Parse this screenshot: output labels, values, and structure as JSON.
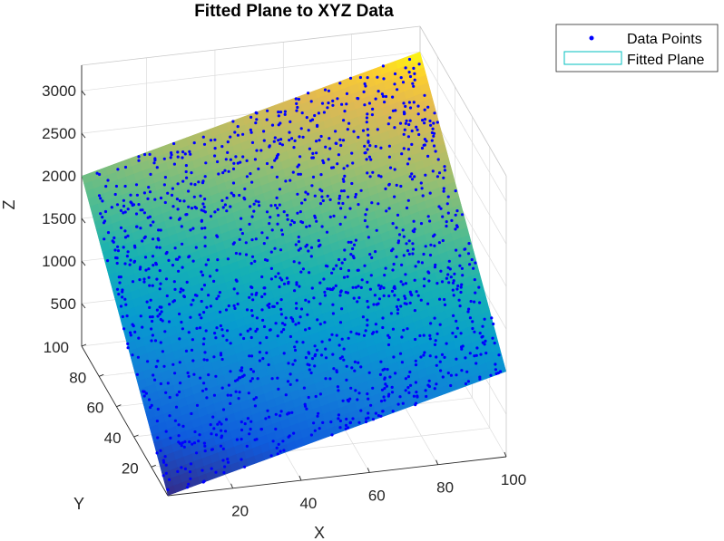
{
  "chart_data": {
    "type": "surface3d",
    "title": "Fitted Plane to XYZ Data",
    "xlabel": "X",
    "ylabel": "Y",
    "zlabel": "Z",
    "xlim": [
      1,
      100
    ],
    "ylim": [
      1,
      100
    ],
    "zlim": [
      0,
      3300
    ],
    "x_ticks": [
      20,
      40,
      60,
      80,
      100
    ],
    "y_ticks": [
      20,
      40,
      60,
      80,
      100
    ],
    "z_ticks": [
      500,
      1000,
      1500,
      2000,
      2500,
      3000
    ],
    "plane": {
      "corner_values": [
        {
          "x": 1,
          "y": 1,
          "z": 0
        },
        {
          "x": 100,
          "y": 1,
          "z": 1000
        },
        {
          "x": 1,
          "y": 100,
          "z": 2000
        },
        {
          "x": 100,
          "y": 100,
          "z": 3000
        }
      ],
      "colormap": "parula",
      "color_range": [
        0,
        3000
      ]
    },
    "scatter": {
      "name": "Data Points",
      "color": "#0000ff",
      "marker": "dot",
      "count": 1500
    },
    "grid": true,
    "legend": {
      "position": "top-right",
      "entries": [
        {
          "label": "Data Points",
          "type": "marker",
          "color": "#0000ff"
        },
        {
          "label": "Fitted Plane",
          "type": "patch",
          "edge_color": "#00bfbf"
        }
      ]
    }
  }
}
